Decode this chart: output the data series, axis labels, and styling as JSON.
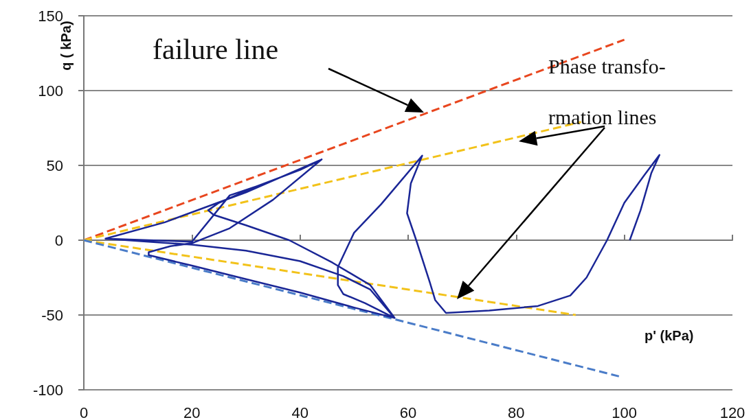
{
  "chart_data": {
    "type": "line",
    "xlabel": "p' (kPa)",
    "ylabel": "q ( kPa)",
    "xlim": [
      0,
      120
    ],
    "xticks": [
      0,
      20,
      40,
      60,
      80,
      100,
      120
    ],
    "ylim": [
      -100,
      150
    ],
    "yticks": [
      -100,
      -50,
      0,
      50,
      100,
      150
    ],
    "grid": "y",
    "annotations": [
      "failure line",
      "Phase transfo-rmation lines"
    ],
    "series": [
      {
        "color": "#e8461e",
        "line_style": "dashed",
        "x": [
          0,
          100
        ],
        "values": [
          0,
          134
        ]
      },
      {
        "color": "#f2c21a",
        "line_style": "dashed",
        "x": [
          0,
          92
        ],
        "values": [
          0,
          79
        ]
      },
      {
        "color": "#f2c21a",
        "line_style": "dashed",
        "x": [
          0,
          91
        ],
        "values": [
          0,
          -50
        ]
      },
      {
        "color": "#4a7cc8",
        "line_style": "dashed",
        "x": [
          0,
          99
        ],
        "values": [
          0,
          -91
        ]
      },
      {
        "color": "#1a2696",
        "line_style": "solid",
        "x": [
          4,
          15,
          30,
          44,
          40,
          32,
          25,
          23,
          24,
          30,
          38,
          46,
          53,
          57.5,
          50,
          40,
          30,
          20,
          12,
          12,
          16,
          20,
          27,
          35,
          44,
          40,
          32,
          27,
          20,
          12,
          4,
          12,
          20,
          30,
          40,
          48,
          53,
          57.5,
          52,
          48,
          47,
          47,
          50,
          55,
          62.6,
          60.5,
          59.8,
          61.5,
          64,
          65,
          67,
          75,
          84,
          90,
          93,
          96.8,
          100,
          104,
          106.5,
          105,
          103,
          101
        ],
        "values": [
          1,
          12,
          32,
          54,
          47,
          36,
          25,
          20,
          17,
          10,
          0,
          -15,
          -30,
          -52,
          -45,
          -35,
          -26,
          -17,
          -10,
          -8,
          -4,
          -2,
          8,
          27,
          54,
          47,
          36,
          30,
          -1,
          0,
          1,
          -1,
          -3,
          -7,
          -14,
          -24,
          -33,
          -52,
          -42,
          -36,
          -30,
          -18,
          5,
          24,
          56.5,
          38,
          18,
          0,
          -28,
          -40,
          -48.6,
          -47,
          -44,
          -37,
          -25,
          0,
          25,
          45,
          57,
          45,
          20,
          0
        ]
      }
    ]
  }
}
